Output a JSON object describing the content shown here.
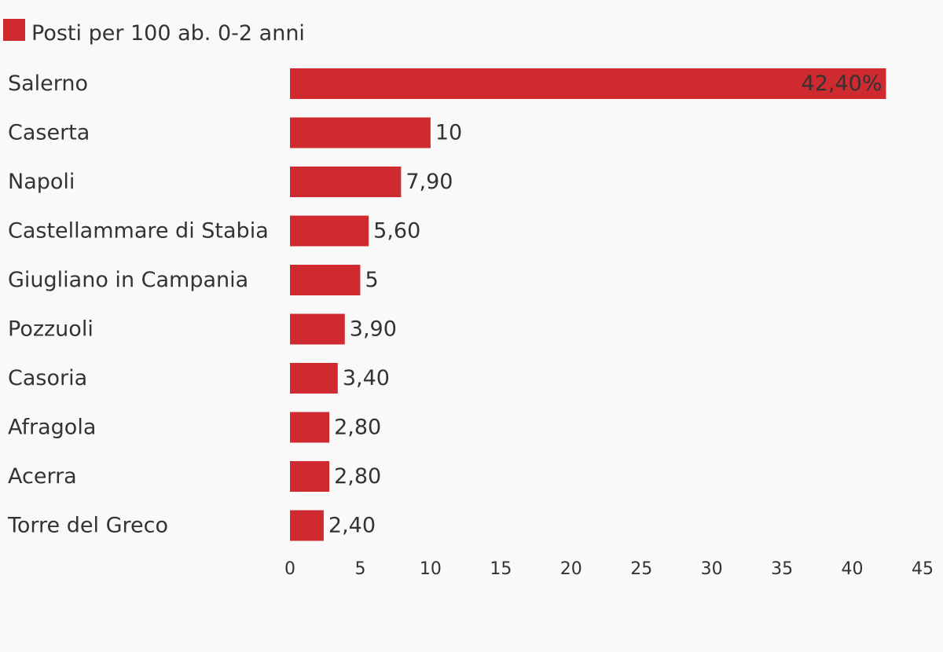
{
  "colors": {
    "bar": "#cf2a30",
    "background": "#f9f9f9",
    "text": "#333333"
  },
  "legend": {
    "label": "Posti per 100 ab. 0-2 anni",
    "placement": "top-left"
  },
  "chart_data": {
    "type": "bar",
    "orientation": "horizontal",
    "categories": [
      "Salerno",
      "Caserta",
      "Napoli",
      "Castellammare di Stabia",
      "Giugliano in Campania",
      "Pozzuoli",
      "Casoria",
      "Afragola",
      "Acerra",
      "Torre del Greco"
    ],
    "series": [
      {
        "name": "Posti per 100 ab. 0-2 anni",
        "values": [
          42.4,
          10,
          7.9,
          5.6,
          5,
          3.9,
          3.4,
          2.8,
          2.8,
          2.4
        ],
        "labels": [
          "42,40%",
          "10",
          "7,90",
          "5,60",
          "5",
          "3,90",
          "3,40",
          "2,80",
          "2,80",
          "2,40"
        ]
      }
    ],
    "xlim": [
      0,
      45
    ],
    "x_ticks": [
      0,
      5,
      10,
      15,
      20,
      25,
      30,
      35,
      40,
      45
    ],
    "grid": false,
    "title": "",
    "xlabel": "",
    "ylabel": ""
  }
}
